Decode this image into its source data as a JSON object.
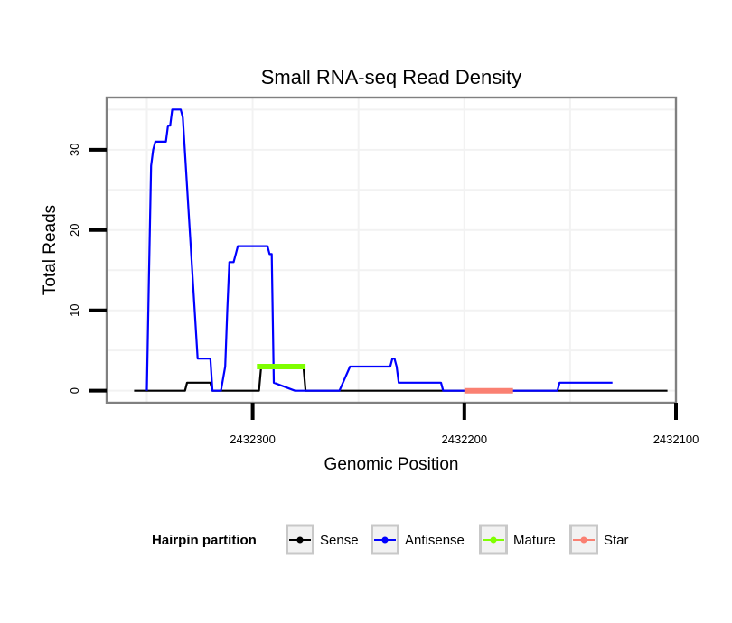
{
  "chart_data": {
    "type": "line",
    "title": "Small RNA-seq Read Density",
    "xlabel": "Genomic Position",
    "ylabel": "Total Reads",
    "x_reversed": true,
    "xlim": [
      2432369,
      2432100
    ],
    "ylim": [
      -1.5,
      36.5
    ],
    "x_ticks": [
      2432300,
      2432200,
      2432100
    ],
    "x_tick_labels": [
      "2432300",
      "2432200",
      "2432100"
    ],
    "y_ticks": [
      0,
      10,
      20,
      30
    ],
    "y_tick_labels": [
      "0",
      "10",
      "20",
      "30"
    ],
    "grid": true,
    "legend": {
      "title": "Hairpin partition",
      "position": "bottom",
      "entries": [
        "Sense",
        "Antisense",
        "Mature",
        "Star"
      ]
    },
    "series": [
      {
        "name": "Sense",
        "color": "#000000",
        "x": [
          2432356,
          2432332,
          2432331,
          2432320,
          2432319,
          2432310,
          2432297,
          2432296,
          2432276,
          2432275,
          2432104
        ],
        "y": [
          0,
          0,
          1,
          1,
          0,
          0,
          0,
          3,
          3,
          0,
          0
        ]
      },
      {
        "name": "Antisense",
        "color": "#0000ff",
        "x": [
          2432350,
          2432349,
          2432348,
          2432347,
          2432346,
          2432345,
          2432341,
          2432340,
          2432339,
          2432338,
          2432336,
          2432335,
          2432334,
          2432333,
          2432326,
          2432325,
          2432322,
          2432321,
          2432320,
          2432319,
          2432318,
          2432317,
          2432315,
          2432313,
          2432312,
          2432311,
          2432310,
          2432309,
          2432308,
          2432307,
          2432305,
          2432293,
          2432292,
          2432291,
          2432290,
          2432280,
          2432259,
          2432254,
          2432235,
          2432234,
          2432233,
          2432232,
          2432231,
          2432211,
          2432210,
          2432156,
          2432155,
          2432130
        ],
        "y": [
          0,
          14,
          28,
          30,
          31,
          31,
          31,
          33,
          33,
          35,
          35,
          35,
          35,
          34,
          4,
          4,
          4,
          4,
          4,
          0,
          0,
          0,
          0,
          3,
          10,
          16,
          16,
          16,
          17,
          18,
          18,
          18,
          17,
          17,
          1,
          0,
          0,
          3,
          3,
          4,
          4,
          3,
          1,
          1,
          0,
          0,
          1,
          1
        ]
      },
      {
        "name": "Mature",
        "color": "#7fff00",
        "x": [
          2432298,
          2432275
        ],
        "y": [
          3,
          3
        ]
      },
      {
        "name": "Star",
        "color": "#fa8072",
        "x": [
          2432200,
          2432177
        ],
        "y": [
          0,
          0
        ]
      }
    ]
  }
}
